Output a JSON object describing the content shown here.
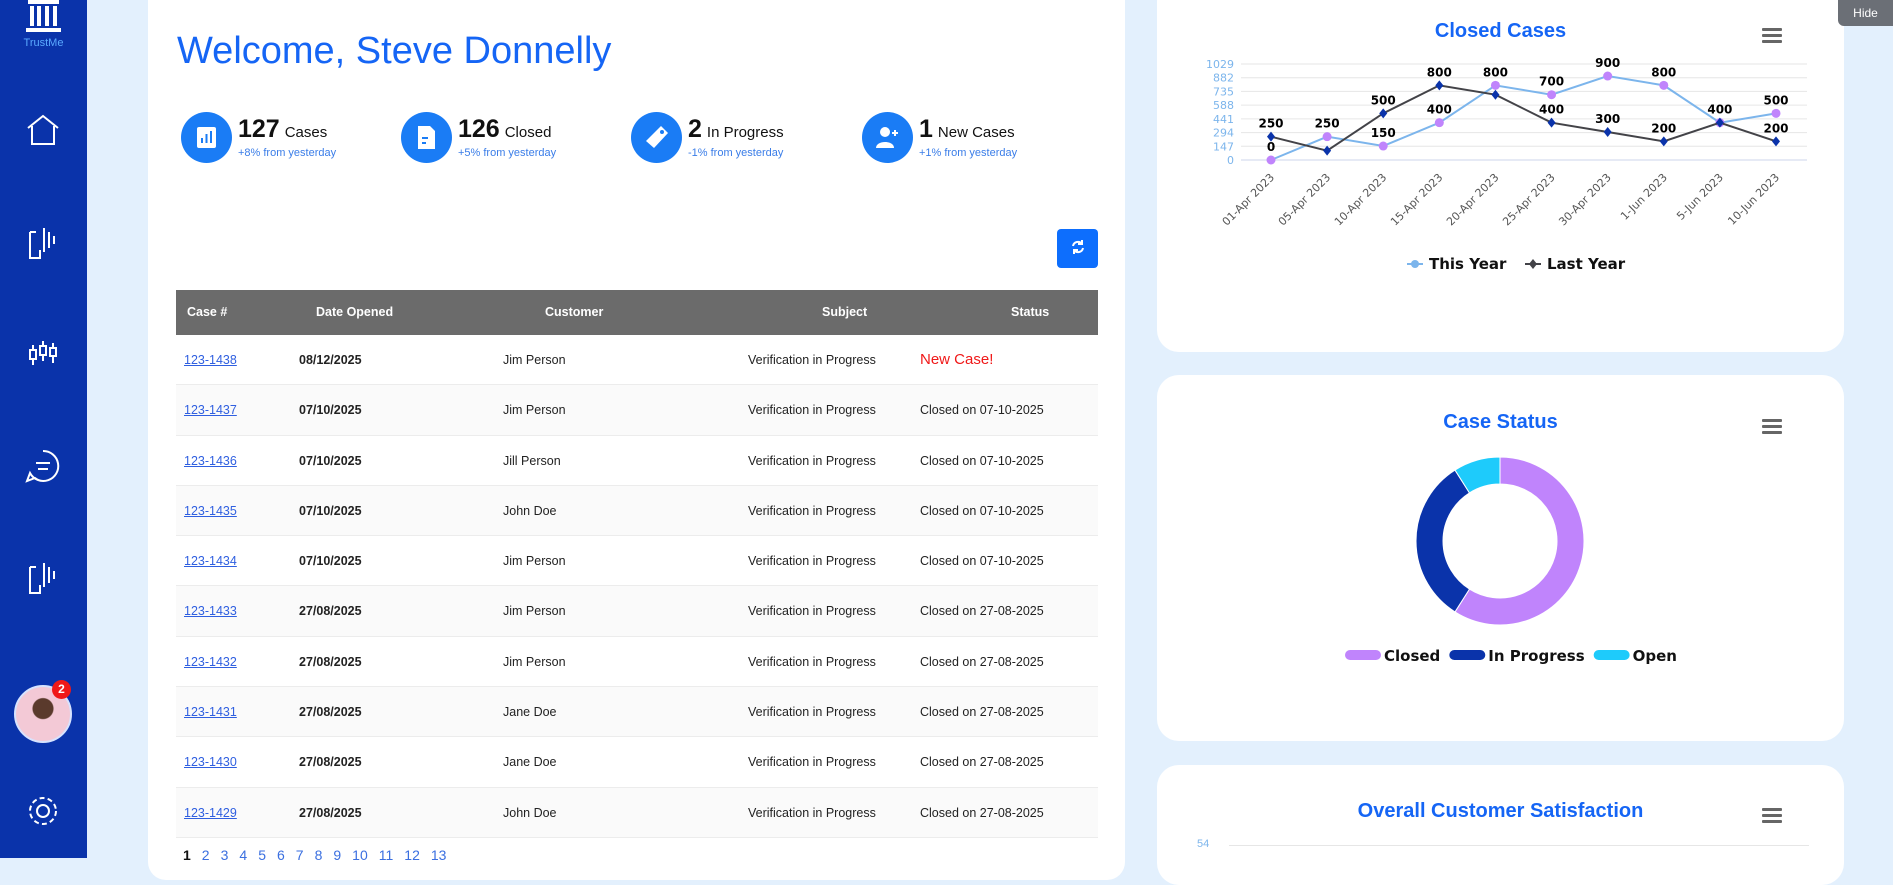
{
  "app": {
    "logo_text": "TrustMe",
    "notification_count": "2",
    "hide_label": "Hide"
  },
  "sidebar": {
    "items": [
      "home-icon",
      "phone-signal-icon",
      "candlestick-icon",
      "chat-icon",
      "phone-signal-icon",
      "settings-icon"
    ]
  },
  "welcome": "Welcome, Steve Donnelly",
  "stats": [
    {
      "value": "127",
      "label": "Cases",
      "sub": "+8% from yesterday",
      "icon": "bar-chart-icon"
    },
    {
      "value": "126",
      "label": "Closed",
      "sub": "+5% from yesterday",
      "icon": "document-icon"
    },
    {
      "value": "2",
      "label": "In Progress",
      "sub": "-1% from yesterday",
      "icon": "tag-icon"
    },
    {
      "value": "1",
      "label": "New Cases",
      "sub": "+1% from yesterday",
      "icon": "user-plus-icon"
    }
  ],
  "table": {
    "headers": [
      "Case #",
      "Date Opened",
      "Customer",
      "Subject",
      "Status"
    ],
    "rows": [
      [
        "123-1438",
        "08/12/2025",
        "Jim Person",
        "Verification in Progress",
        "New Case!"
      ],
      [
        "123-1437",
        "07/10/2025",
        "Jim Person",
        "Verification in Progress",
        "Closed on 07-10-2025"
      ],
      [
        "123-1436",
        "07/10/2025",
        "Jill Person",
        "Verification in Progress",
        "Closed on 07-10-2025"
      ],
      [
        "123-1435",
        "07/10/2025",
        "John Doe",
        "Verification in Progress",
        "Closed on 07-10-2025"
      ],
      [
        "123-1434",
        "07/10/2025",
        "Jim Person",
        "Verification in Progress",
        "Closed on 07-10-2025"
      ],
      [
        "123-1433",
        "27/08/2025",
        "Jim Person",
        "Verification in Progress",
        "Closed on 27-08-2025"
      ],
      [
        "123-1432",
        "27/08/2025",
        "Jim Person",
        "Verification in Progress",
        "Closed on 27-08-2025"
      ],
      [
        "123-1431",
        "27/08/2025",
        "Jane Doe",
        "Verification in Progress",
        "Closed on 27-08-2025"
      ],
      [
        "123-1430",
        "27/08/2025",
        "Jane Doe",
        "Verification in Progress",
        "Closed on 27-08-2025"
      ],
      [
        "123-1429",
        "27/08/2025",
        "John Doe",
        "Verification in Progress",
        "Closed on 27-08-2025"
      ]
    ],
    "pages": [
      "1",
      "2",
      "3",
      "4",
      "5",
      "6",
      "7",
      "8",
      "9",
      "10",
      "11",
      "12",
      "13"
    ],
    "current_page": "1"
  },
  "colors": {
    "accent": "#1565f5",
    "sidebar": "#0a33aa",
    "new_case": "#f01818"
  },
  "chart_data": [
    {
      "type": "line",
      "title": "Closed Cases",
      "categories": [
        "01-Apr 2023",
        "05-Apr 2023",
        "10-Apr 2023",
        "15-Apr 2023",
        "20-Apr 2023",
        "25-Apr 2023",
        "30-Apr 2023",
        "1-Jun 2023",
        "5-Jun 2023",
        "10-Jun 2023"
      ],
      "yticks": [
        "0",
        "147",
        "294",
        "441",
        "588",
        "735",
        "882",
        "1029"
      ],
      "ylim": [
        0,
        1029
      ],
      "grid": true,
      "legend": "bottom",
      "series": [
        {
          "name": "This Year",
          "color": "#7cb5ec",
          "marker_color": "#c084fc",
          "values": [
            0,
            250,
            150,
            400,
            800,
            700,
            900,
            800,
            400,
            500
          ]
        },
        {
          "name": "Last Year",
          "color": "#434348",
          "marker_color": "#0a33aa",
          "values": [
            250,
            100,
            500,
            800,
            700,
            400,
            300,
            200,
            400,
            200
          ]
        }
      ]
    },
    {
      "type": "pie",
      "title": "Case Status",
      "legend": "bottom",
      "donut": true,
      "slices": [
        {
          "name": "Closed",
          "value": 59,
          "color": "#c084fc"
        },
        {
          "name": "In Progress",
          "value": 32,
          "color": "#0a33aa"
        },
        {
          "name": "Open",
          "value": 9,
          "color": "#1ecbfb"
        }
      ]
    },
    {
      "type": "bar",
      "title": "Overall Customer Satisfaction",
      "yticks": [
        "54"
      ]
    }
  ]
}
